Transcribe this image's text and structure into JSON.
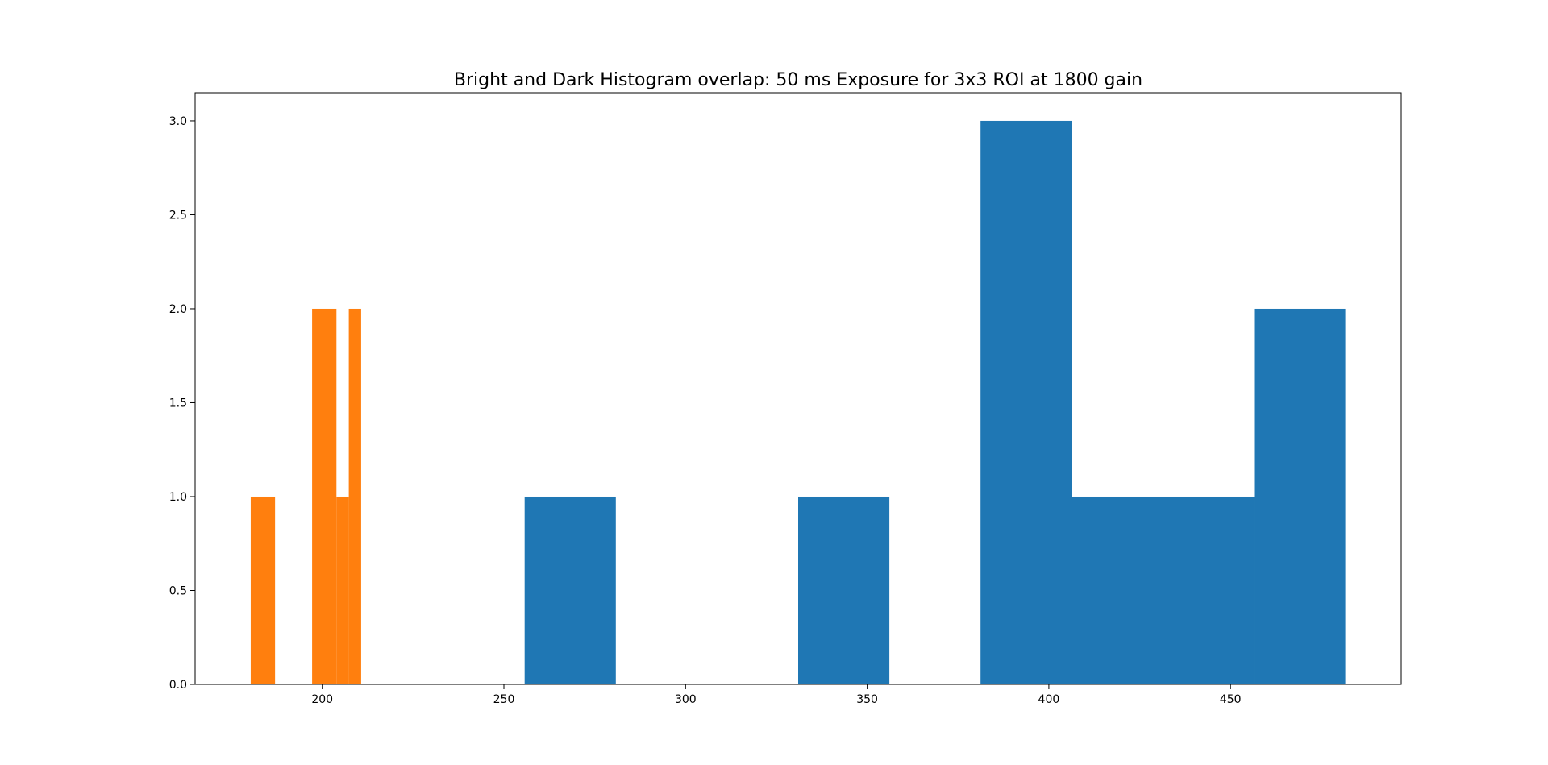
{
  "chart_data": {
    "type": "bar",
    "title": "Bright and Dark Histogram overlap: 50 ms Exposure for 3x3 ROI at 1800 gain",
    "xlabel": "",
    "ylabel": "",
    "xlim": [
      165,
      497
    ],
    "ylim": [
      0,
      3.15
    ],
    "x_ticks": [
      200,
      250,
      300,
      350,
      400,
      450
    ],
    "x_tick_labels": [
      "200",
      "250",
      "300",
      "350",
      "400",
      "450"
    ],
    "y_ticks": [
      0,
      0.5,
      1,
      1.5,
      2,
      2.5,
      3
    ],
    "y_tick_labels": [
      "0.0",
      "0.5",
      "1.0",
      "1.5",
      "2.0",
      "2.5",
      "3.0"
    ],
    "grid": false,
    "legend": "none",
    "series": [
      {
        "color": "#1f77b4",
        "bins": [
          {
            "x0": 255.7,
            "x1": 280.8,
            "count": 1
          },
          {
            "x0": 280.8,
            "x1": 305.9,
            "count": 0
          },
          {
            "x0": 305.9,
            "x1": 331.0,
            "count": 0
          },
          {
            "x0": 331.0,
            "x1": 356.1,
            "count": 1
          },
          {
            "x0": 356.1,
            "x1": 381.2,
            "count": 0
          },
          {
            "x0": 381.2,
            "x1": 406.3,
            "count": 3
          },
          {
            "x0": 406.3,
            "x1": 431.4,
            "count": 1
          },
          {
            "x0": 431.4,
            "x1": 456.5,
            "count": 1
          },
          {
            "x0": 456.5,
            "x1": 481.6,
            "count": 2
          }
        ]
      },
      {
        "color": "#ff7f0e",
        "bins": [
          {
            "x0": 180.3,
            "x1": 187.0,
            "count": 1
          },
          {
            "x0": 187.0,
            "x1": 193.8,
            "count": 0
          },
          {
            "x0": 193.8,
            "x1": 197.2,
            "count": 0
          },
          {
            "x0": 197.2,
            "x1": 203.9,
            "count": 2
          },
          {
            "x0": 203.9,
            "x1": 207.3,
            "count": 1
          },
          {
            "x0": 207.3,
            "x1": 210.7,
            "count": 2
          }
        ]
      }
    ]
  }
}
